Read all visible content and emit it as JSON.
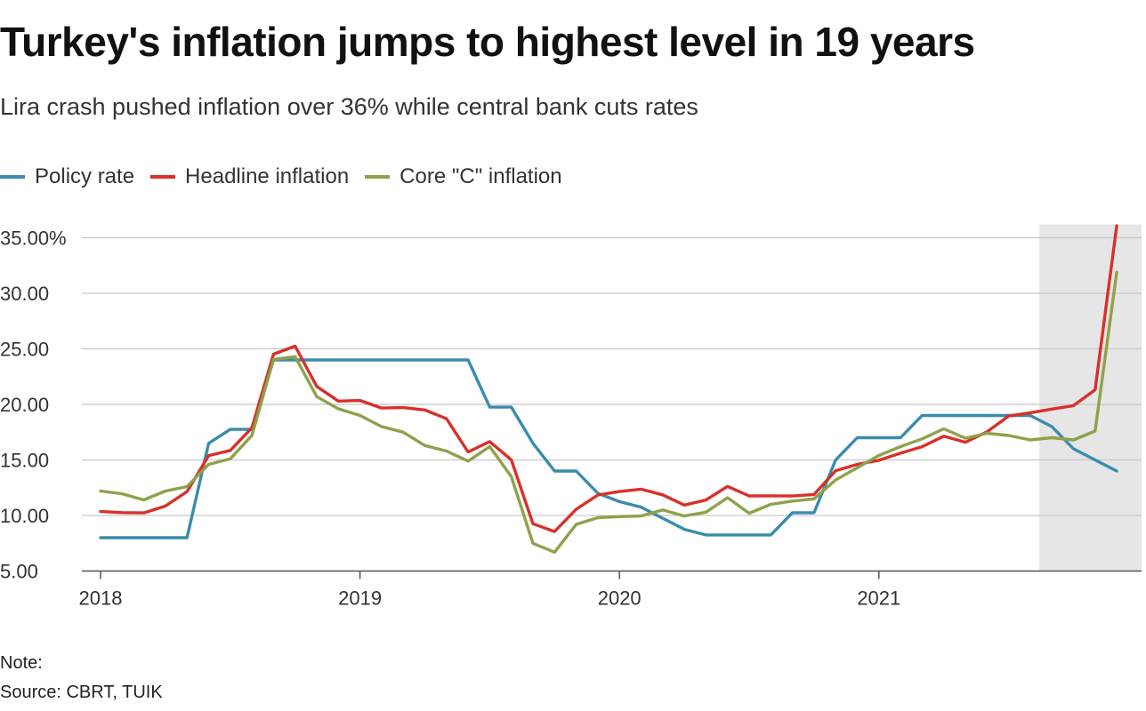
{
  "header": {
    "title": "Turkey's inflation jumps to highest level in 19 years",
    "subtitle": "Lira crash pushed inflation over 36% while central bank cuts rates"
  },
  "legend": [
    {
      "label": "Policy rate",
      "color": "#3a8cae"
    },
    {
      "label": "Headline inflation",
      "color": "#d9302a"
    },
    {
      "label": "Core \"C\" inflation",
      "color": "#8ea24a"
    }
  ],
  "footer": {
    "note": "Note:",
    "source": "Source: CBRT, TUIK"
  },
  "chart_data": {
    "type": "line",
    "x": [
      "2018-01",
      "2018-02",
      "2018-03",
      "2018-04",
      "2018-05",
      "2018-06",
      "2018-07",
      "2018-08",
      "2018-09",
      "2018-10",
      "2018-11",
      "2018-12",
      "2019-01",
      "2019-02",
      "2019-03",
      "2019-04",
      "2019-05",
      "2019-06",
      "2019-07",
      "2019-08",
      "2019-09",
      "2019-10",
      "2019-11",
      "2019-12",
      "2020-01",
      "2020-02",
      "2020-03",
      "2020-04",
      "2020-05",
      "2020-06",
      "2020-07",
      "2020-08",
      "2020-09",
      "2020-10",
      "2020-11",
      "2020-12",
      "2021-01",
      "2021-02",
      "2021-03",
      "2021-04",
      "2021-05",
      "2021-06",
      "2021-07",
      "2021-08",
      "2021-09",
      "2021-10",
      "2021-11",
      "2021-12"
    ],
    "x_tick_labels": [
      "2018",
      "2019",
      "2020",
      "2021"
    ],
    "y_tick_labels": [
      "35.00%",
      "30.00",
      "25.00",
      "20.00",
      "15.00",
      "10.00",
      "5.00"
    ],
    "y_ticks": [
      35,
      30,
      25,
      20,
      15,
      10,
      5
    ],
    "ylim": [
      5,
      36
    ],
    "grid": true,
    "legend_position": "top-left",
    "highlight_range": [
      "2021-09",
      "2021-12"
    ],
    "highlight_color": "#e6e6e6",
    "series": [
      {
        "name": "Policy rate",
        "color": "#3a8cae",
        "values": [
          8,
          8,
          8,
          8,
          8,
          16.5,
          17.75,
          17.75,
          24,
          24,
          24,
          24,
          24,
          24,
          24,
          24,
          24,
          24,
          19.75,
          19.75,
          16.5,
          14,
          14,
          12,
          11.25,
          10.75,
          9.75,
          8.75,
          8.25,
          8.25,
          8.25,
          8.25,
          10.25,
          10.25,
          15,
          17,
          17,
          17,
          19,
          19,
          19,
          19,
          19,
          19,
          18,
          16,
          15,
          14
        ]
      },
      {
        "name": "Headline inflation",
        "color": "#d9302a",
        "values": [
          10.35,
          10.26,
          10.23,
          10.85,
          12.15,
          15.39,
          15.85,
          17.9,
          24.52,
          25.24,
          21.62,
          20.3,
          20.35,
          19.67,
          19.71,
          19.5,
          18.71,
          15.72,
          16.65,
          15.01,
          9.26,
          8.55,
          10.56,
          11.84,
          12.15,
          12.37,
          11.86,
          10.94,
          11.39,
          12.62,
          11.76,
          11.77,
          11.75,
          11.89,
          14.03,
          14.6,
          14.97,
          15.61,
          16.19,
          17.14,
          16.59,
          17.53,
          18.95,
          19.25,
          19.58,
          19.89,
          21.31,
          36.08
        ]
      },
      {
        "name": "Core \"C\" inflation",
        "color": "#8ea24a",
        "values": [
          12.2,
          11.95,
          11.4,
          12.2,
          12.6,
          14.6,
          15.1,
          17.2,
          24.05,
          24.3,
          20.7,
          19.6,
          19.0,
          18.0,
          17.5,
          16.3,
          15.8,
          14.9,
          16.2,
          13.5,
          7.5,
          6.7,
          9.2,
          9.8,
          9.9,
          9.95,
          10.5,
          9.95,
          10.3,
          11.6,
          10.2,
          11.0,
          11.3,
          11.5,
          13.2,
          14.3,
          15.4,
          16.2,
          16.9,
          17.8,
          16.95,
          17.4,
          17.2,
          16.8,
          17.0,
          16.8,
          17.6,
          31.9
        ]
      }
    ]
  }
}
